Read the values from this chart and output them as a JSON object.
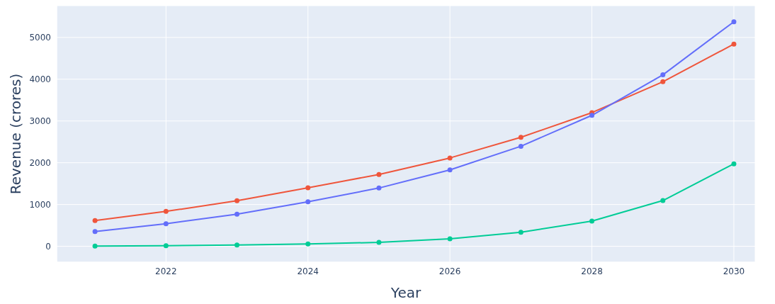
{
  "chart_data": {
    "type": "line",
    "xlabel": "Year",
    "ylabel": "Revenue (crores)",
    "x": [
      2021,
      2022,
      2023,
      2024,
      2025,
      2026,
      2027,
      2028,
      2029,
      2030
    ],
    "series": [
      {
        "color": "#ef553b",
        "values": [
          615,
          835,
          1090,
          1400,
          1720,
          2115,
          2610,
          3200,
          3940,
          4840
        ]
      },
      {
        "color": "#636efa",
        "values": [
          355,
          540,
          770,
          1065,
          1395,
          1830,
          2395,
          3135,
          4105,
          5375
        ]
      },
      {
        "color": "#00cc96",
        "values": [
          5,
          15,
          30,
          55,
          95,
          180,
          335,
          605,
          1095,
          1975
        ]
      }
    ],
    "xlim": [
      2020.46,
      2030.3
    ],
    "xticks": [
      2022,
      2024,
      2026,
      2028,
      2030
    ],
    "ylim": [
      -380,
      5760
    ],
    "yticks": [
      0,
      1000,
      2000,
      3000,
      4000,
      5000
    ],
    "grid": true,
    "legend": false,
    "marker": "circle",
    "line_style": "solid"
  }
}
